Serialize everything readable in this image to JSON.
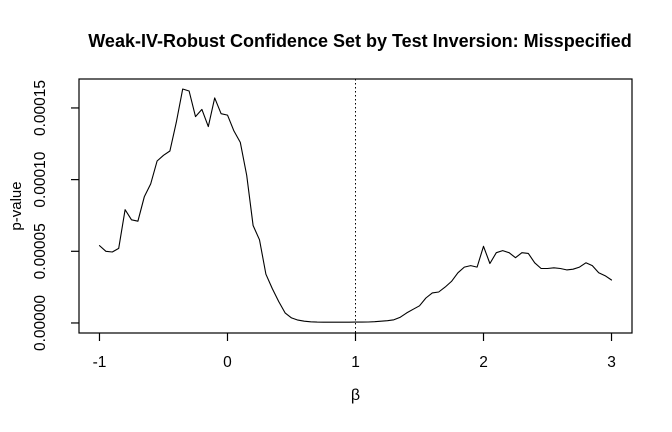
{
  "chart_data": {
    "type": "line",
    "title": "Weak-IV-Robust Confidence Set by Test Inversion: Misspecified",
    "xlabel": "β",
    "ylabel": "p-value",
    "xlim": [
      -1.16,
      3.16
    ],
    "ylim": [
      -7e-06,
      0.0001702
    ],
    "grid": false,
    "legend_position": "none",
    "background": "#ffffff",
    "axis_color": "#000000",
    "x_ticks": [
      -1,
      0,
      1,
      2,
      3
    ],
    "x_tick_labels": [
      "-1",
      "0",
      "1",
      "2",
      "3"
    ],
    "y_ticks": [
      0,
      5e-05,
      0.0001,
      0.00015
    ],
    "y_tick_labels": [
      "0.00000",
      "0.00005",
      "0.00010",
      "0.00015"
    ],
    "reference_line": {
      "x": 1,
      "style": "dotted",
      "color": "#000000"
    },
    "series": [
      {
        "name": "p-value",
        "color": "#000000",
        "x": [
          -1.0,
          -0.95,
          -0.9,
          -0.85,
          -0.8,
          -0.75,
          -0.7,
          -0.65,
          -0.6,
          -0.55,
          -0.5,
          -0.45,
          -0.4,
          -0.35,
          -0.3,
          -0.25,
          -0.2,
          -0.15,
          -0.1,
          -0.05,
          0.0,
          0.05,
          0.1,
          0.15,
          0.2,
          0.25,
          0.3,
          0.35,
          0.4,
          0.45,
          0.5,
          0.55,
          0.6,
          0.65,
          0.7,
          0.75,
          0.8,
          0.85,
          0.9,
          0.95,
          1.0,
          1.05,
          1.1,
          1.15,
          1.2,
          1.25,
          1.3,
          1.35,
          1.4,
          1.45,
          1.5,
          1.55,
          1.6,
          1.65,
          1.7,
          1.75,
          1.8,
          1.85,
          1.9,
          1.95,
          2.0,
          2.05,
          2.1,
          2.15,
          2.2,
          2.25,
          2.3,
          2.35,
          2.4,
          2.45,
          2.5,
          2.55,
          2.6,
          2.65,
          2.7,
          2.75,
          2.8,
          2.85,
          2.9,
          2.95,
          3.0
        ],
        "y": [
          5.4e-05,
          5e-05,
          4.95e-05,
          5.2e-05,
          7.9e-05,
          7.2e-05,
          7.1e-05,
          8.8e-05,
          9.7e-05,
          0.000113,
          0.000117,
          0.00012,
          0.00014,
          0.0001632,
          0.0001618,
          0.000144,
          0.000149,
          0.000137,
          0.000157,
          0.000146,
          0.000145,
          0.000134,
          0.000126,
          0.000103,
          6.8e-05,
          5.8e-05,
          3.4e-05,
          2.4e-05,
          1.5e-05,
          7e-06,
          3.5e-06,
          2e-06,
          1.2e-06,
          8e-07,
          6e-07,
          5e-07,
          5e-07,
          5e-07,
          5e-07,
          5e-07,
          6e-07,
          6e-07,
          7e-07,
          9e-07,
          1.2e-06,
          1.6e-06,
          2.2e-06,
          4e-06,
          7e-06,
          9.5e-06,
          1.2e-05,
          1.74e-05,
          2.1e-05,
          2.16e-05,
          2.5e-05,
          2.9e-05,
          3.5e-05,
          3.9e-05,
          4e-05,
          3.9e-05,
          5.35e-05,
          4.15e-05,
          4.9e-05,
          5.05e-05,
          4.9e-05,
          4.55e-05,
          4.9e-05,
          4.85e-05,
          4.2e-05,
          3.8e-05,
          3.8e-05,
          3.85e-05,
          3.8e-05,
          3.7e-05,
          3.75e-05,
          3.9e-05,
          4.2e-05,
          4e-05,
          3.5e-05,
          3.3e-05,
          3e-05
        ]
      }
    ]
  }
}
